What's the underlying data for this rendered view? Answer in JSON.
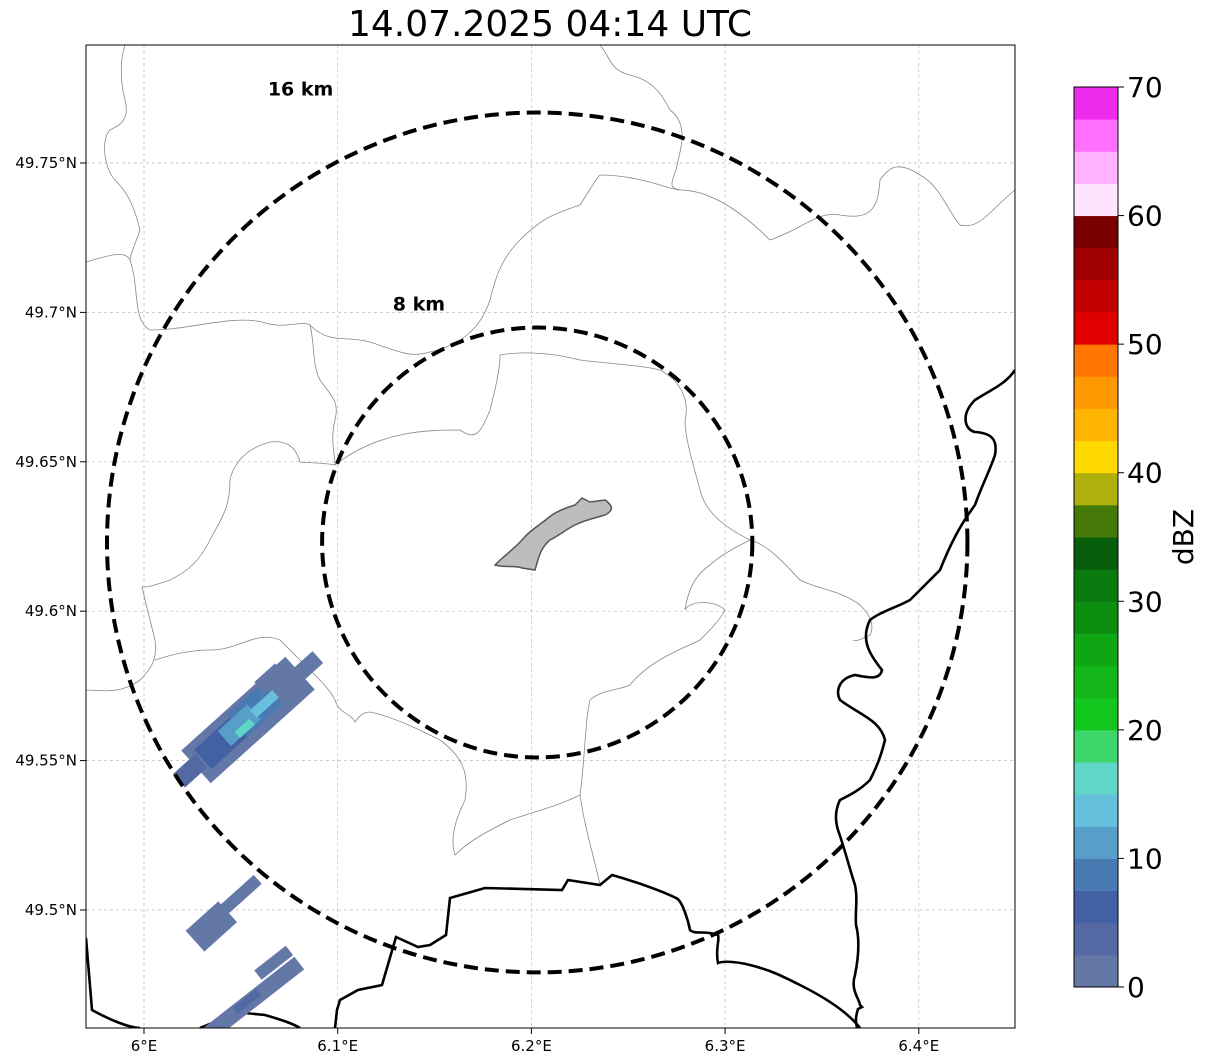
{
  "title": "14.07.2025 04:14 UTC",
  "map": {
    "lon_range": [
      5.97,
      6.45
    ],
    "lat_range": [
      49.46,
      49.79
    ],
    "x_ticks": [
      "6°E",
      "6.1°E",
      "6.2°E",
      "6.3°E",
      "6.4°E"
    ],
    "y_ticks": [
      "49.5°N",
      "49.55°N",
      "49.6°N",
      "49.65°N",
      "49.7°N",
      "49.75°N"
    ],
    "grid": "dashed",
    "radar_center": {
      "lon": 6.203,
      "lat": 49.623
    },
    "range_rings": [
      {
        "label": "8 km",
        "radius_km": 8
      },
      {
        "label": "16 km",
        "radius_km": 16
      }
    ],
    "colors": {
      "ring": "#000000",
      "grid": "#bbbbbb",
      "border": "#000000",
      "region": "#888888",
      "city_fill": "#bdbdbd"
    }
  },
  "colorbar": {
    "label": "dBZ",
    "min": 0,
    "max": 70,
    "step": 2.5,
    "tick_labels": [
      "0",
      "10",
      "20",
      "30",
      "40",
      "50",
      "60",
      "70"
    ],
    "tick_values": [
      0,
      10,
      20,
      30,
      40,
      50,
      60,
      70
    ],
    "colors": [
      "#6478a8",
      "#5468a3",
      "#4460a4",
      "#4a7ab2",
      "#579ec8",
      "#67c0dc",
      "#60d6c8",
      "#3cd66a",
      "#12c61e",
      "#12b618",
      "#0fa614",
      "#0d8e10",
      "#0a7a0e",
      "#065e0a",
      "#457a09",
      "#b0b00c",
      "#ffd800",
      "#ffb400",
      "#ff9900",
      "#ff7700",
      "#e00000",
      "#c20000",
      "#a00000",
      "#7a0000",
      "#ffe4ff",
      "#ffb2ff",
      "#ff70ff",
      "#ee2cee"
    ]
  }
}
